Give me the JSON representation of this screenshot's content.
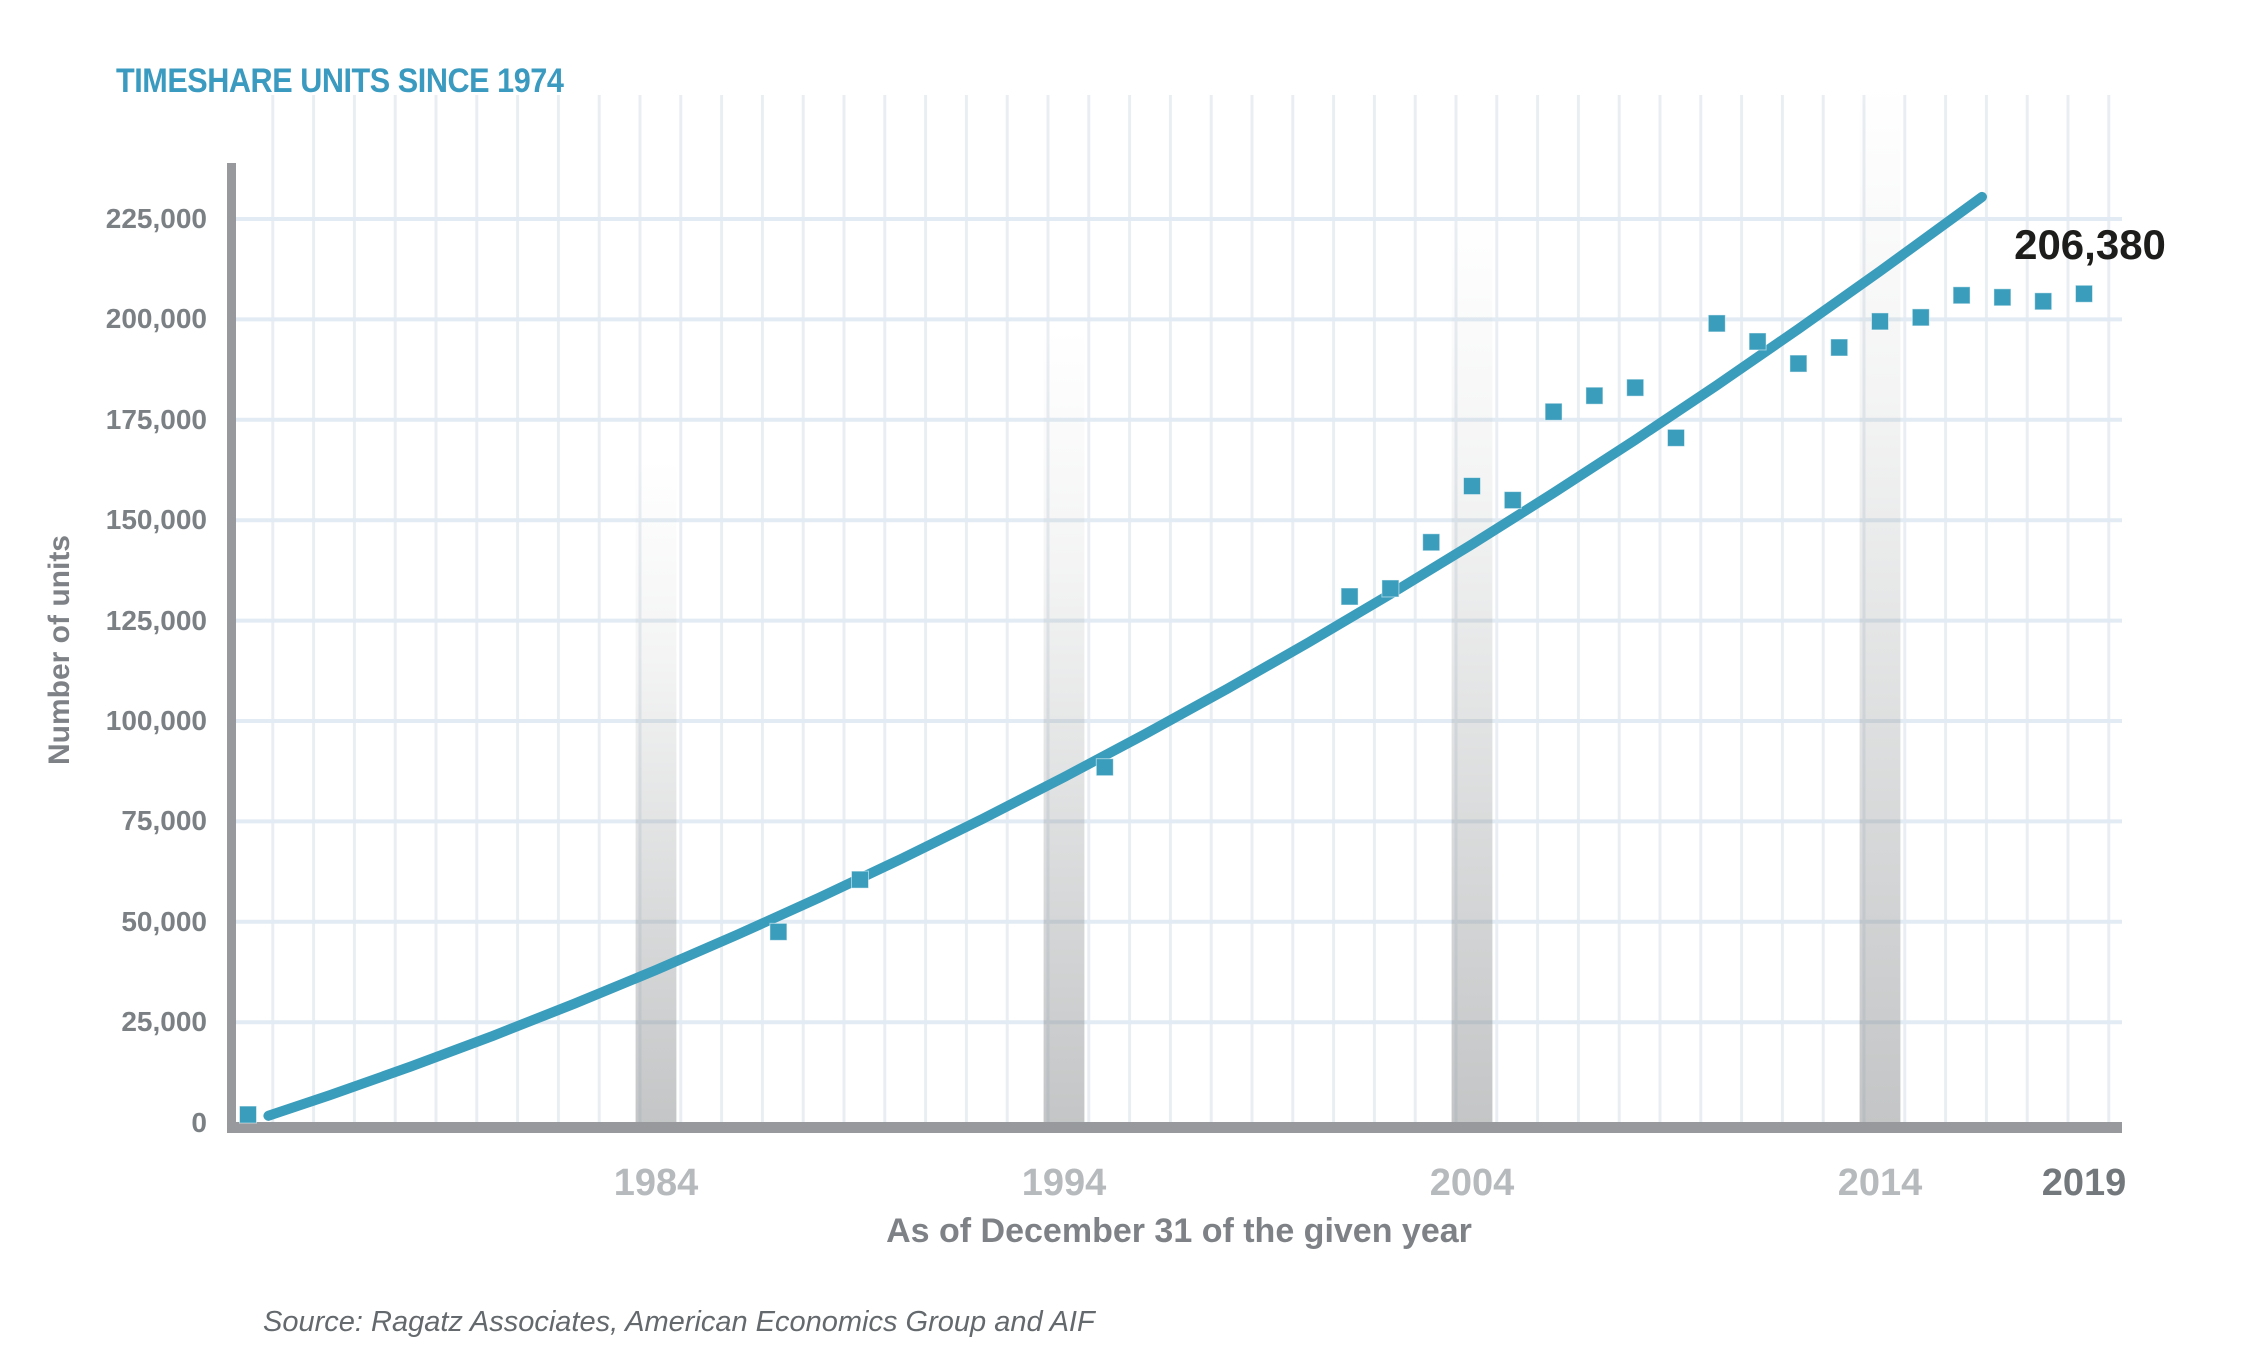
{
  "title": "TIMESHARE UNITS SINCE 1974",
  "source_note": "Source: Ragatz Associates, American Economics Group and AIF",
  "annotation": {
    "label": "206,380",
    "year": 2019
  },
  "y_axis": {
    "title": "Number of units",
    "ticks": [
      {
        "value": 0,
        "label": "0"
      },
      {
        "value": 25000,
        "label": "25,000"
      },
      {
        "value": 50000,
        "label": "50,000"
      },
      {
        "value": 75000,
        "label": "75,000"
      },
      {
        "value": 100000,
        "label": "100,000"
      },
      {
        "value": 125000,
        "label": "125,000"
      },
      {
        "value": 150000,
        "label": "150,000"
      },
      {
        "value": 175000,
        "label": "175,000"
      },
      {
        "value": 200000,
        "label": "200,000"
      },
      {
        "value": 225000,
        "label": "225,000"
      }
    ]
  },
  "x_axis": {
    "title": "As of December 31 of the given year",
    "ticks": [
      {
        "year": 1984,
        "label": "1984",
        "muted": true
      },
      {
        "year": 1994,
        "label": "1994",
        "muted": true
      },
      {
        "year": 2004,
        "label": "2004",
        "muted": true
      },
      {
        "year": 2014,
        "label": "2014",
        "muted": true
      },
      {
        "year": 2019,
        "label": "2019",
        "muted": false
      }
    ]
  },
  "colors": {
    "accent": "#3a9dbc",
    "title_text": "#3a9abf",
    "axis_line": "#97999d",
    "grid_vertical": "#e9eef3",
    "grid_horizontal": "#e2ebf3",
    "y_tick_text": "#7b8084",
    "x_tick_muted_text": "#b6babd",
    "x_tick_dark_text": "#73787c",
    "axis_title_text": "#7e8287",
    "source_text": "#64696d",
    "annotation_text": "#1d1d1b",
    "decade_bar_gray": "#8c9092"
  },
  "chart_data": {
    "type": "scatter",
    "title": "TIMESHARE UNITS SINCE 1974",
    "xlabel": "As of December 31 of the given year",
    "ylabel": "Number of units",
    "xlim": [
      1973.5,
      2020.5
    ],
    "ylim": [
      0,
      237000
    ],
    "grid": true,
    "legend": "none",
    "gridlines": "vertical every 1 year, horizontal every 25,000 units",
    "annotated_point": {
      "year": 2019,
      "value": 206380,
      "label": "206,380"
    },
    "series": [
      {
        "name": "Timeshare units",
        "type": "scatter",
        "marker": "square",
        "points": [
          [
            1974,
            2000
          ],
          [
            1987,
            47500
          ],
          [
            1989,
            60500
          ],
          [
            1995,
            88500
          ],
          [
            2001,
            131000
          ],
          [
            2002,
            133000
          ],
          [
            2003,
            144500
          ],
          [
            2004,
            158500
          ],
          [
            2005,
            155000
          ],
          [
            2006,
            177000
          ],
          [
            2007,
            181000
          ],
          [
            2008,
            183000
          ],
          [
            2009,
            170500
          ],
          [
            2010,
            199000
          ],
          [
            2011,
            194500
          ],
          [
            2012,
            189000
          ],
          [
            2013,
            193000
          ],
          [
            2014,
            199500
          ],
          [
            2015,
            200500
          ],
          [
            2016,
            206000
          ],
          [
            2017,
            205500
          ],
          [
            2018,
            204500
          ],
          [
            2019,
            206380
          ]
        ]
      },
      {
        "name": "Trend line",
        "type": "line",
        "points": [
          [
            1974.5,
            1700
          ],
          [
            1976,
            6800
          ],
          [
            1978,
            14000
          ],
          [
            1980,
            21600
          ],
          [
            1982,
            29600
          ],
          [
            1984,
            38000
          ],
          [
            1986,
            46800
          ],
          [
            1988,
            56000
          ],
          [
            1990,
            65600
          ],
          [
            1992,
            75600
          ],
          [
            1994,
            86000
          ],
          [
            1996,
            96800
          ],
          [
            1998,
            108000
          ],
          [
            2000,
            119600
          ],
          [
            2002,
            131600
          ],
          [
            2004,
            144000
          ],
          [
            2006,
            156800
          ],
          [
            2008,
            170000
          ],
          [
            2010,
            183600
          ],
          [
            2012,
            197600
          ],
          [
            2014,
            212000
          ],
          [
            2016,
            226800
          ],
          [
            2016.5,
            230500
          ]
        ]
      }
    ],
    "decade_bars": [
      {
        "year": 1984,
        "top": 460
      },
      {
        "year": 1994,
        "top": 330
      },
      {
        "year": 2004,
        "top": 210
      },
      {
        "year": 2014,
        "top": 85
      }
    ]
  }
}
